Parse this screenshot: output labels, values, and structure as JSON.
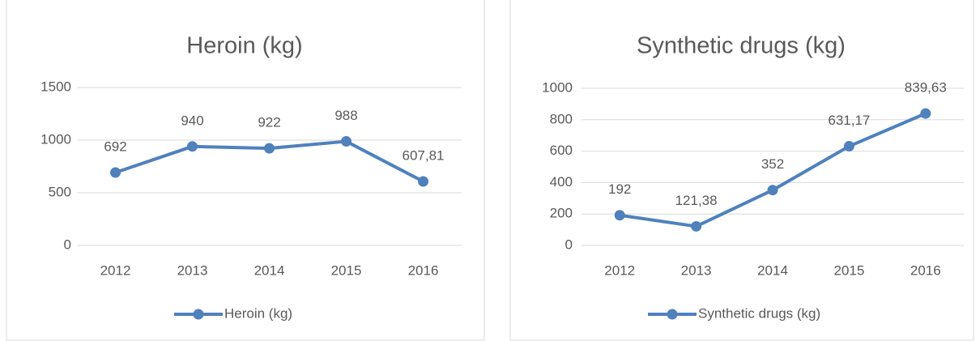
{
  "chart_data": [
    {
      "type": "line",
      "title": "Heroin (kg)",
      "categories": [
        "2012",
        "2013",
        "2014",
        "2015",
        "2016"
      ],
      "series": [
        {
          "name": "Heroin (kg)",
          "color": "#4f81bd",
          "values": [
            692,
            940,
            922,
            988,
            607.81
          ],
          "value_labels": [
            "692",
            "940",
            "922",
            "988",
            "607,81"
          ]
        }
      ],
      "ylim": [
        0,
        1500
      ],
      "yticks": [
        0,
        500,
        1000,
        1500
      ],
      "grid": true,
      "legend": "bottom"
    },
    {
      "type": "line",
      "title": "Synthetic drugs (kg)",
      "categories": [
        "2012",
        "2013",
        "2014",
        "2015",
        "2016"
      ],
      "series": [
        {
          "name": "Synthetic drugs (kg)",
          "color": "#4f81bd",
          "values": [
            192,
            121.38,
            352,
            631.17,
            839.63
          ],
          "value_labels": [
            "192",
            "121,38",
            "352",
            "631,17",
            "839,63"
          ]
        }
      ],
      "ylim": [
        0,
        1000
      ],
      "yticks": [
        0,
        200,
        400,
        600,
        800,
        1000
      ],
      "grid": true,
      "legend": "bottom"
    }
  ]
}
